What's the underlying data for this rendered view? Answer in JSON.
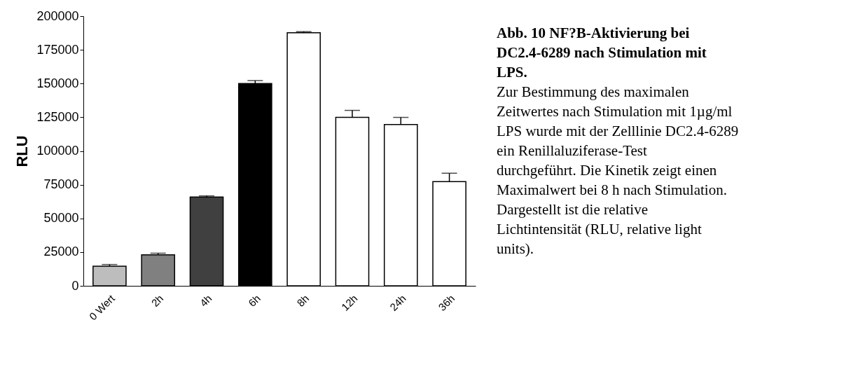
{
  "chart_data": {
    "type": "bar",
    "title": "Abb. 10 NF?B-Aktivierung bei DC2.4-6289 nach Stimulation mit LPS.",
    "ylabel": "RLU",
    "categories": [
      "0 Wert",
      "2h",
      "4h",
      "6h",
      "8h",
      "12h",
      "24h",
      "36h"
    ],
    "values": [
      14600,
      23000,
      65800,
      150000,
      187600,
      124900,
      119600,
      77300
    ],
    "errors": [
      [
        14600,
        15800
      ],
      [
        23000,
        24200
      ],
      [
        65800,
        66700
      ],
      [
        150000,
        152200
      ],
      [
        187600,
        188500
      ],
      [
        124900,
        130100
      ],
      [
        119600,
        124900
      ],
      [
        77300,
        83500
      ]
    ],
    "colors": [
      "#bdbdbd",
      "#808080",
      "#404040",
      "#000000",
      "#ffffff",
      "#ffffff",
      "#ffffff",
      "#ffffff"
    ],
    "ylim": [
      0,
      200000
    ],
    "yticks": [
      0,
      25000,
      50000,
      75000,
      100000,
      125000,
      150000,
      175000,
      200000
    ],
    "grid": false,
    "annotations": [
      "Zur Bestimmung des maximalen Zeitwertes nach Stimulation mit 1µg/ml LPS wurde mit der Zelllinie DC2.4-6289 ein Renillaluziferase-Test durchgeführt. Die Kinetik zeigt einen Maximalwert bei 8 h nach Stimulation. Dargestellt ist die relative Lichtintensität (RLU, relative light units)."
    ]
  }
}
